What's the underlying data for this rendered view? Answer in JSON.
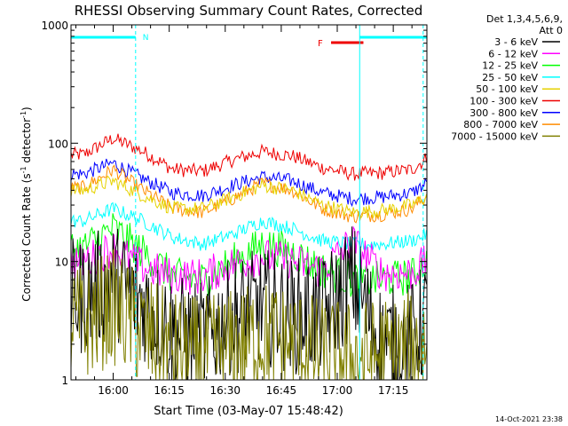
{
  "chart_data": {
    "type": "line",
    "title": "RHESSI Observing Summary Count Rates, Corrected",
    "ylabel": "Corrected Count Rate (s",
    "ylabel_sup": "-1",
    "ylabel_mid": " detector",
    "ylabel_close": ")",
    "xlabel": "Start Time (03-May-07 15:48:42)",
    "y_scale": "log",
    "ylim": [
      1,
      1000
    ],
    "y_ticks": [
      {
        "value": 1,
        "label": "1"
      },
      {
        "value": 10,
        "label": "10"
      },
      {
        "value": 100,
        "label": "100"
      },
      {
        "value": 1000,
        "label": "1000"
      }
    ],
    "x_start": "15:48:42",
    "x_end": "17:24:00",
    "x_ticks": [
      "16:00",
      "16:15",
      "16:30",
      "16:45",
      "17:00",
      "17:15"
    ],
    "grid": false,
    "legend": {
      "placement": "right",
      "header_line1": "Det 1,3,4,5,6,9,",
      "header_line2": "Att 0",
      "items": [
        {
          "label": "3 - 6 keV",
          "color": "#000000"
        },
        {
          "label": "6 - 12 keV",
          "color": "#ff00ff"
        },
        {
          "label": "12 - 25 keV",
          "color": "#00ff00"
        },
        {
          "label": "25 - 50 keV",
          "color": "#00ffff"
        },
        {
          "label": "50 - 100 keV",
          "color": "#e6d200"
        },
        {
          "label": "100 - 300 keV",
          "color": "#ee0000"
        },
        {
          "label": "300 - 800 keV",
          "color": "#0000ff"
        },
        {
          "label": "800 - 7000 keV",
          "color": "#ff8c00"
        },
        {
          "label": "7000 - 15000 keV",
          "color": "#808000"
        }
      ]
    },
    "series": [
      {
        "name": "100 - 300 keV",
        "color": "#ee0000",
        "x": [
          "15:52",
          "16:00",
          "16:08",
          "16:16",
          "16:24",
          "16:32",
          "16:40",
          "16:48",
          "16:56",
          "17:04",
          "17:12",
          "17:20",
          "17:24"
        ],
        "y": [
          80,
          110,
          85,
          60,
          58,
          72,
          85,
          78,
          62,
          55,
          56,
          60,
          75
        ]
      },
      {
        "name": "300 - 800 keV",
        "color": "#0000ff",
        "x": [
          "15:52",
          "16:00",
          "16:08",
          "16:16",
          "16:24",
          "16:32",
          "16:40",
          "16:48",
          "16:56",
          "17:04",
          "17:12",
          "17:20",
          "17:24"
        ],
        "y": [
          55,
          68,
          50,
          38,
          36,
          44,
          52,
          48,
          38,
          34,
          35,
          38,
          46
        ]
      },
      {
        "name": "800 - 7000 keV",
        "color": "#ff8c00",
        "x": [
          "15:52",
          "16:00",
          "16:08",
          "16:16",
          "16:24",
          "16:32",
          "16:40",
          "16:48",
          "16:56",
          "17:04",
          "17:12",
          "17:20",
          "17:24"
        ],
        "y": [
          42,
          60,
          40,
          28,
          26,
          34,
          46,
          40,
          28,
          24,
          25,
          28,
          36
        ]
      },
      {
        "name": "50 - 100 keV",
        "color": "#e6d200",
        "x": [
          "15:52",
          "16:00",
          "16:08",
          "16:16",
          "16:24",
          "16:32",
          "16:40",
          "16:48",
          "16:56",
          "17:04",
          "17:12",
          "17:20",
          "17:24"
        ],
        "y": [
          40,
          48,
          36,
          28,
          28,
          35,
          44,
          40,
          30,
          26,
          27,
          30,
          35
        ]
      },
      {
        "name": "25 - 50 keV",
        "color": "#00ffff",
        "x": [
          "15:52",
          "16:00",
          "16:08",
          "16:16",
          "16:24",
          "16:32",
          "16:40",
          "16:48",
          "16:56",
          "17:04",
          "17:12",
          "17:20",
          "17:24"
        ],
        "y": [
          22,
          28,
          22,
          16,
          14,
          17,
          22,
          19,
          15,
          14,
          14,
          15,
          17
        ]
      },
      {
        "name": "12 - 25 keV",
        "color": "#00ff00",
        "x": [
          "15:52",
          "16:00",
          "16:08",
          "16:16",
          "16:24",
          "16:32",
          "16:40",
          "16:48",
          "16:56",
          "17:04",
          "17:12",
          "17:20",
          "17:24"
        ],
        "y": [
          13,
          19,
          12,
          7.5,
          7,
          10,
          14,
          12,
          8.5,
          7,
          7,
          7.5,
          10
        ]
      },
      {
        "name": "6 - 12 keV",
        "color": "#ff00ff",
        "x": [
          "15:52",
          "16:00",
          "16:08",
          "16:16",
          "16:24",
          "16:32",
          "16:40",
          "16:48",
          "16:56",
          "17:04",
          "17:12",
          "17:20",
          "17:24"
        ],
        "y": [
          10,
          13,
          9,
          7.5,
          7.5,
          9.5,
          11,
          10,
          8.5,
          15,
          8,
          8,
          10
        ]
      },
      {
        "name": "3 - 6 keV",
        "color": "#000000",
        "x": [
          "15:52",
          "16:00",
          "16:08",
          "16:16",
          "16:24",
          "16:32",
          "16:40",
          "16:48",
          "16:56",
          "17:04",
          "17:12",
          "17:20",
          "17:24"
        ],
        "y": [
          5,
          7,
          4.5,
          2.5,
          2.2,
          3.5,
          4.2,
          3.5,
          3.5,
          7,
          2,
          2.2,
          3.5
        ]
      },
      {
        "name": "7000 - 15000 keV",
        "color": "#808000",
        "x": [
          "15:52",
          "16:00",
          "16:08",
          "16:16",
          "16:24",
          "16:32",
          "16:40",
          "16:48",
          "16:56",
          "17:04",
          "17:12",
          "17:20",
          "17:24"
        ],
        "y": [
          3,
          4.2,
          2.5,
          1.8,
          1.6,
          1.9,
          2.3,
          2,
          1.6,
          1.5,
          1.6,
          1.8,
          2.1
        ]
      }
    ],
    "annotations": {
      "n_marker": "N",
      "f_marker": "F",
      "n_bars": [
        [
          "15:48:42",
          "16:06"
        ],
        [
          "17:06",
          "17:24"
        ]
      ],
      "f_bar": [
        "17:05",
        "17:07"
      ],
      "dashed_lines": [
        "16:06",
        "17:23"
      ],
      "solid_lines": [
        "15:48:42",
        "17:06"
      ]
    }
  },
  "footer_date": "14-Oct-2021 23:38"
}
